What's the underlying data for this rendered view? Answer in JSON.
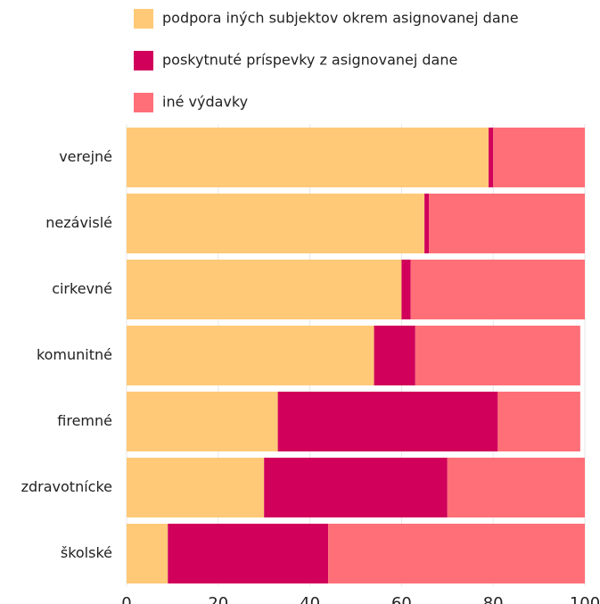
{
  "chart_data": {
    "type": "stacked-barh",
    "categories": [
      "verejné",
      "nezávislé",
      "cirkevné",
      "komunitné",
      "firemné",
      "zdravotnícke",
      "školské"
    ],
    "series": [
      {
        "name": "podpora iných subjektov okrem asignovanej dane",
        "color": "#ffc978",
        "values": [
          79,
          65,
          60,
          54,
          33,
          30,
          9
        ]
      },
      {
        "name": "poskytnuté príspevky z asignovanej dane",
        "color": "#d1005b",
        "values": [
          1,
          1,
          2,
          9,
          48,
          40,
          35
        ]
      },
      {
        "name": "iné výdavky",
        "color": "#ff6f77",
        "values": [
          20,
          34,
          38,
          36,
          18,
          30,
          56
        ]
      }
    ],
    "xlim": [
      0,
      100
    ],
    "xticks": [
      0,
      20,
      40,
      60,
      80,
      100
    ],
    "grid": true
  }
}
